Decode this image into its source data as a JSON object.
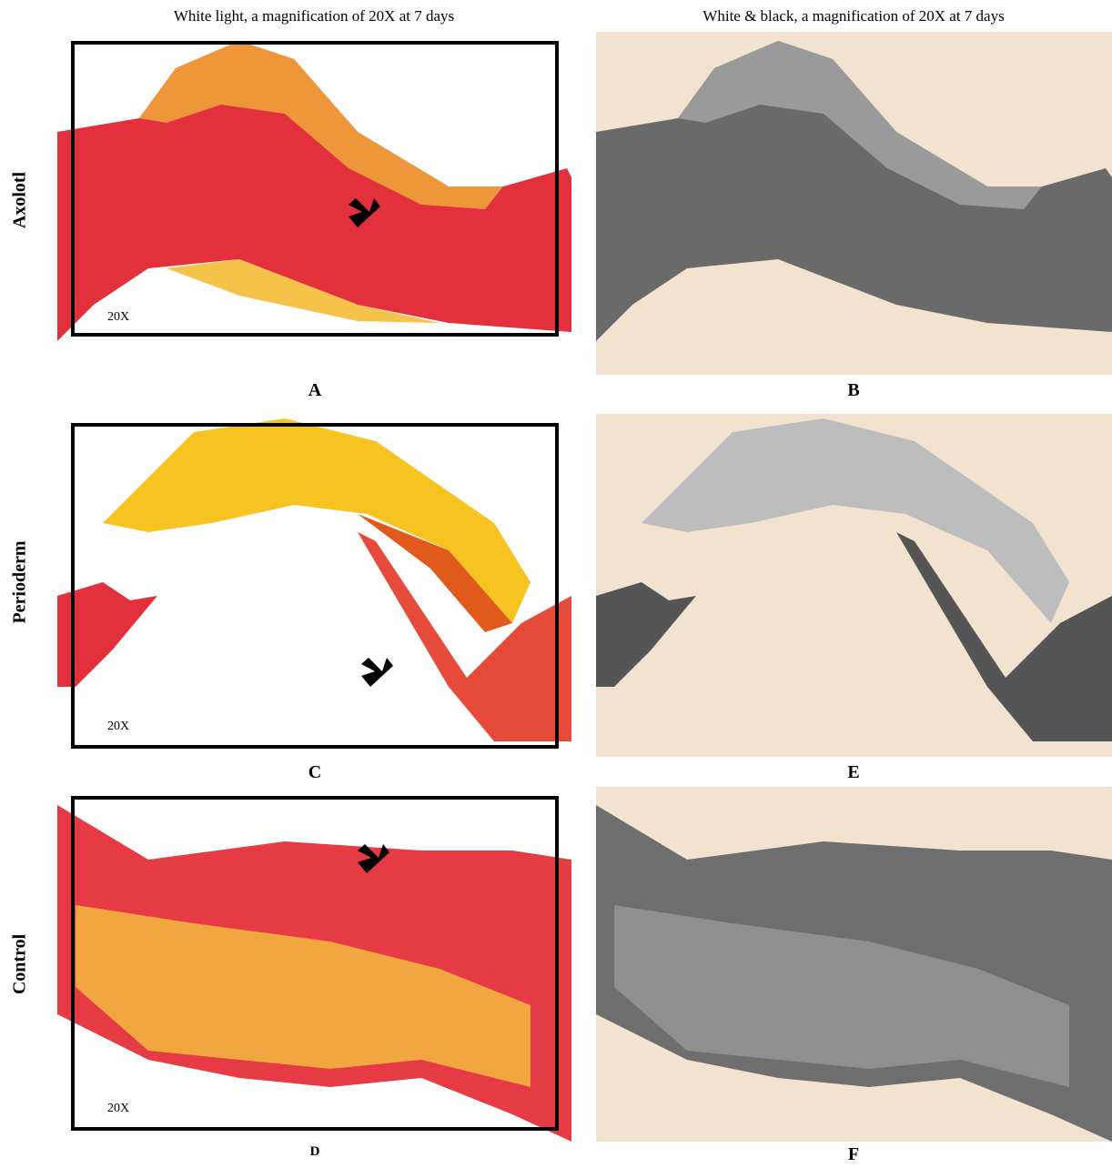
{
  "columns": [
    "White light, a magnification of 20X at 7 days",
    "White & black, a magnification of 20X at 7 days"
  ],
  "rows": [
    {
      "label": "Axolotl",
      "panels": [
        {
          "letter": "A",
          "magnification": "20X"
        },
        {
          "letter": "B"
        }
      ]
    },
    {
      "label": "Perioderm",
      "panels": [
        {
          "letter": "C",
          "magnification": "20X"
        },
        {
          "letter": "E"
        }
      ]
    },
    {
      "label": "Control",
      "panels": [
        {
          "letter": "D",
          "magnification": "20X"
        },
        {
          "letter": "F"
        }
      ]
    }
  ]
}
